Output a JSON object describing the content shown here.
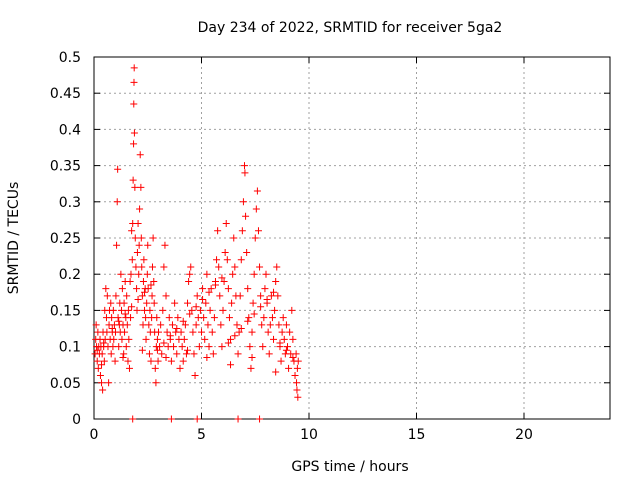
{
  "chart_data": {
    "type": "scatter",
    "title": "Day 234 of 2022, SRMTID for receiver 5ga2",
    "xlabel": "GPS time / hours",
    "ylabel": "SRMTID / TECUs",
    "xlim": [
      0,
      24
    ],
    "ylim": [
      0,
      0.5
    ],
    "xticks": [
      0,
      5,
      10,
      15,
      20
    ],
    "yticks": [
      0,
      0.05,
      0.1,
      0.15,
      0.2,
      0.25,
      0.3,
      0.35,
      0.4,
      0.45,
      0.5
    ],
    "xtick_labels": [
      "0",
      "5",
      "10",
      "15",
      "20"
    ],
    "ytick_labels": [
      "0",
      "0.05",
      "0.1",
      "0.15",
      "0.2",
      "0.25",
      "0.3",
      "0.35",
      "0.4",
      "0.45",
      "0.5"
    ],
    "grid": true,
    "marker": "+",
    "color": "#ff0000",
    "series": [
      {
        "name": "SRMTID",
        "points": [
          [
            0.05,
            0.09
          ],
          [
            0.08,
            0.11
          ],
          [
            0.1,
            0.13
          ],
          [
            0.12,
            0.1
          ],
          [
            0.15,
            0.08
          ],
          [
            0.18,
            0.12
          ],
          [
            0.2,
            0.07
          ],
          [
            0.22,
            0.1
          ],
          [
            0.25,
            0.09
          ],
          [
            0.28,
            0.11
          ],
          [
            0.3,
            0.06
          ],
          [
            0.32,
            0.1
          ],
          [
            0.35,
            0.05
          ],
          [
            0.38,
            0.09
          ],
          [
            0.4,
            0.04
          ],
          [
            0.42,
            0.12
          ],
          [
            0.45,
            0.1
          ],
          [
            0.48,
            0.08
          ],
          [
            0.5,
            0.15
          ],
          [
            0.52,
            0.11
          ],
          [
            0.55,
            0.18
          ],
          [
            0.58,
            0.14
          ],
          [
            0.6,
            0.12
          ],
          [
            0.62,
            0.17
          ],
          [
            0.65,
            0.1
          ],
          [
            0.68,
            0.05
          ],
          [
            0.7,
            0.13
          ],
          [
            0.72,
            0.15
          ],
          [
            0.75,
            0.11
          ],
          [
            0.78,
            0.16
          ],
          [
            0.8,
            0.09
          ],
          [
            0.82,
            0.14
          ],
          [
            0.85,
            0.12
          ],
          [
            0.88,
            0.1
          ],
          [
            0.9,
            0.15
          ],
          [
            0.92,
            0.11
          ],
          [
            0.95,
            0.13
          ],
          [
            0.98,
            0.08
          ],
          [
            1.0,
            0.12
          ],
          [
            1.02,
            0.17
          ],
          [
            1.05,
            0.24
          ],
          [
            1.08,
            0.3
          ],
          [
            1.1,
            0.345
          ],
          [
            1.12,
            0.14
          ],
          [
            1.15,
            0.1
          ],
          [
            1.18,
            0.13
          ],
          [
            1.2,
            0.16
          ],
          [
            1.22,
            0.12
          ],
          [
            1.25,
            0.2
          ],
          [
            1.28,
            0.15
          ],
          [
            1.3,
            0.11
          ],
          [
            1.32,
            0.18
          ],
          [
            1.35,
            0.13
          ],
          [
            1.38,
            0.09
          ],
          [
            1.4,
            0.16
          ],
          [
            1.42,
            0.12
          ],
          [
            1.45,
            0.19
          ],
          [
            1.48,
            0.14
          ],
          [
            1.5,
            0.1
          ],
          [
            1.52,
            0.17
          ],
          [
            1.55,
            0.13
          ],
          [
            1.58,
            0.08
          ],
          [
            1.6,
            0.15
          ],
          [
            1.62,
            0.11
          ],
          [
            1.65,
            0.07
          ],
          [
            1.68,
            0.19
          ],
          [
            1.7,
            0.14
          ],
          [
            1.72,
            0.2
          ],
          [
            1.75,
            0.26
          ],
          [
            1.78,
            0.22
          ],
          [
            1.8,
            0.27
          ],
          [
            1.82,
            0.33
          ],
          [
            1.84,
            0.38
          ],
          [
            1.85,
            0.435
          ],
          [
            1.86,
            0.465
          ],
          [
            1.87,
            0.485
          ],
          [
            1.88,
            0.395
          ],
          [
            1.9,
            0.32
          ],
          [
            1.92,
            0.25
          ],
          [
            1.95,
            0.21
          ],
          [
            1.98,
            0.18
          ],
          [
            2.0,
            0.15
          ],
          [
            2.02,
            0.23
          ],
          [
            2.05,
            0.27
          ],
          [
            2.08,
            0.2
          ],
          [
            2.1,
            0.24
          ],
          [
            2.12,
            0.29
          ],
          [
            2.15,
            0.365
          ],
          [
            2.18,
            0.32
          ],
          [
            2.2,
            0.25
          ],
          [
            2.22,
            0.21
          ],
          [
            2.25,
            0.17
          ],
          [
            2.28,
            0.13
          ],
          [
            2.3,
            0.19
          ],
          [
            2.32,
            0.22
          ],
          [
            2.35,
            0.15
          ],
          [
            2.38,
            0.18
          ],
          [
            2.4,
            0.14
          ],
          [
            2.42,
            0.11
          ],
          [
            2.45,
            0.16
          ],
          [
            2.48,
            0.2
          ],
          [
            2.5,
            0.24
          ],
          [
            2.52,
            0.18
          ],
          [
            2.55,
            0.13
          ],
          [
            2.58,
            0.09
          ],
          [
            2.6,
            0.15
          ],
          [
            2.62,
            0.12
          ],
          [
            2.65,
            0.08
          ],
          [
            2.68,
            0.14
          ],
          [
            2.7,
            0.17
          ],
          [
            2.72,
            0.21
          ],
          [
            2.75,
            0.25
          ],
          [
            2.78,
            0.19
          ],
          [
            2.8,
            0.16
          ],
          [
            2.82,
            0.12
          ],
          [
            2.85,
            0.07
          ],
          [
            2.88,
            0.05
          ],
          [
            2.9,
            0.1
          ],
          [
            2.92,
            0.14
          ],
          [
            2.95,
            0.11
          ],
          [
            2.98,
            0.08
          ],
          [
            3.0,
            0.12
          ],
          [
            3.05,
            0.1
          ],
          [
            3.1,
            0.13
          ],
          [
            3.15,
            0.09
          ],
          [
            3.2,
            0.15
          ],
          [
            3.25,
            0.21
          ],
          [
            3.3,
            0.24
          ],
          [
            3.35,
            0.17
          ],
          [
            3.4,
            0.12
          ],
          [
            3.45,
            0.1
          ],
          [
            3.5,
            0.14
          ],
          [
            3.55,
            0.11
          ],
          [
            3.6,
            0.08
          ],
          [
            3.65,
            0.13
          ],
          [
            3.7,
            0.1
          ],
          [
            3.75,
            0.16
          ],
          [
            3.8,
            0.12
          ],
          [
            3.85,
            0.09
          ],
          [
            3.9,
            0.14
          ],
          [
            3.95,
            0.11
          ],
          [
            4.0,
            0.07
          ],
          [
            4.05,
            0.12
          ],
          [
            4.1,
            0.1
          ],
          [
            4.15,
            0.08
          ],
          [
            4.2,
            0.11
          ],
          [
            4.25,
            0.13
          ],
          [
            4.3,
            0.09
          ],
          [
            4.35,
            0.16
          ],
          [
            4.4,
            0.19
          ],
          [
            4.45,
            0.2
          ],
          [
            4.5,
            0.21
          ],
          [
            4.55,
            0.15
          ],
          [
            4.6,
            0.12
          ],
          [
            4.65,
            0.09
          ],
          [
            4.7,
            0.06
          ],
          [
            4.75,
            0.13
          ],
          [
            4.8,
            0.17
          ],
          [
            4.85,
            0.14
          ],
          [
            4.9,
            0.1
          ],
          [
            4.95,
            0.15
          ],
          [
            5.0,
            0.12
          ],
          [
            5.05,
            0.18
          ],
          [
            5.1,
            0.14
          ],
          [
            5.15,
            0.11
          ],
          [
            5.2,
            0.16
          ],
          [
            5.25,
            0.2
          ],
          [
            5.3,
            0.13
          ],
          [
            5.35,
            0.1
          ],
          [
            5.4,
            0.15
          ],
          [
            5.45,
            0.18
          ],
          [
            5.5,
            0.12
          ],
          [
            5.55,
            0.09
          ],
          [
            5.6,
            0.14
          ],
          [
            5.65,
            0.19
          ],
          [
            5.7,
            0.22
          ],
          [
            5.75,
            0.26
          ],
          [
            5.8,
            0.21
          ],
          [
            5.85,
            0.17
          ],
          [
            5.9,
            0.13
          ],
          [
            5.95,
            0.1
          ],
          [
            6.0,
            0.15
          ],
          [
            6.05,
            0.19
          ],
          [
            6.1,
            0.23
          ],
          [
            6.15,
            0.27
          ],
          [
            6.2,
            0.22
          ],
          [
            6.25,
            0.18
          ],
          [
            6.3,
            0.14
          ],
          [
            6.35,
            0.11
          ],
          [
            6.4,
            0.16
          ],
          [
            6.45,
            0.2
          ],
          [
            6.5,
            0.25
          ],
          [
            6.55,
            0.21
          ],
          [
            6.6,
            0.17
          ],
          [
            6.65,
            0.13
          ],
          [
            6.7,
            0.09
          ],
          [
            6.75,
            0.12
          ],
          [
            6.8,
            0.17
          ],
          [
            6.85,
            0.22
          ],
          [
            6.9,
            0.26
          ],
          [
            6.95,
            0.3
          ],
          [
            7.0,
            0.35
          ],
          [
            7.02,
            0.34
          ],
          [
            7.05,
            0.28
          ],
          [
            7.1,
            0.23
          ],
          [
            7.15,
            0.18
          ],
          [
            7.2,
            0.14
          ],
          [
            7.25,
            0.1
          ],
          [
            7.3,
            0.07
          ],
          [
            7.35,
            0.12
          ],
          [
            7.4,
            0.16
          ],
          [
            7.45,
            0.2
          ],
          [
            7.5,
            0.25
          ],
          [
            7.55,
            0.29
          ],
          [
            7.6,
            0.315
          ],
          [
            7.65,
            0.26
          ],
          [
            7.7,
            0.21
          ],
          [
            7.75,
            0.17
          ],
          [
            7.8,
            0.13
          ],
          [
            7.85,
            0.1
          ],
          [
            7.9,
            0.14
          ],
          [
            7.95,
            0.18
          ],
          [
            8.0,
            0.2
          ],
          [
            8.05,
            0.16
          ],
          [
            8.1,
            0.12
          ],
          [
            8.15,
            0.09
          ],
          [
            8.2,
            0.13
          ],
          [
            8.25,
            0.17
          ],
          [
            8.3,
            0.14
          ],
          [
            8.35,
            0.11
          ],
          [
            8.4,
            0.15
          ],
          [
            8.45,
            0.19
          ],
          [
            8.5,
            0.21
          ],
          [
            8.55,
            0.17
          ],
          [
            8.6,
            0.13
          ],
          [
            8.65,
            0.1
          ],
          [
            8.7,
            0.08
          ],
          [
            8.75,
            0.12
          ],
          [
            8.8,
            0.14
          ],
          [
            8.85,
            0.11
          ],
          [
            8.9,
            0.09
          ],
          [
            8.95,
            0.13
          ],
          [
            9.0,
            0.1
          ],
          [
            9.05,
            0.07
          ],
          [
            9.1,
            0.12
          ],
          [
            9.15,
            0.09
          ],
          [
            9.2,
            0.15
          ],
          [
            9.25,
            0.11
          ],
          [
            9.3,
            0.08
          ],
          [
            9.35,
            0.06
          ],
          [
            9.4,
            0.09
          ],
          [
            9.42,
            0.05
          ],
          [
            9.44,
            0.04
          ],
          [
            9.46,
            0.07
          ],
          [
            9.48,
            0.03
          ],
          [
            9.5,
            0.08
          ],
          [
            0.15,
            0.095
          ],
          [
            0.45,
            0.105
          ],
          [
            0.85,
            0.125
          ],
          [
            1.15,
            0.135
          ],
          [
            1.45,
            0.145
          ],
          [
            1.75,
            0.155
          ],
          [
            2.05,
            0.165
          ],
          [
            2.35,
            0.175
          ],
          [
            2.65,
            0.185
          ],
          [
            2.95,
            0.095
          ],
          [
            3.25,
            0.105
          ],
          [
            3.55,
            0.115
          ],
          [
            3.85,
            0.125
          ],
          [
            4.15,
            0.135
          ],
          [
            4.45,
            0.145
          ],
          [
            4.75,
            0.155
          ],
          [
            5.05,
            0.165
          ],
          [
            5.35,
            0.175
          ],
          [
            5.65,
            0.185
          ],
          [
            5.95,
            0.195
          ],
          [
            6.25,
            0.105
          ],
          [
            6.55,
            0.115
          ],
          [
            6.85,
            0.125
          ],
          [
            7.15,
            0.135
          ],
          [
            7.45,
            0.145
          ],
          [
            7.75,
            0.155
          ],
          [
            8.05,
            0.165
          ],
          [
            8.35,
            0.175
          ],
          [
            8.65,
            0.105
          ],
          [
            8.95,
            0.095
          ],
          [
            9.25,
            0.085
          ],
          [
            0.35,
            0.075
          ],
          [
            1.35,
            0.085
          ],
          [
            2.25,
            0.095
          ],
          [
            3.35,
            0.085
          ],
          [
            4.35,
            0.095
          ],
          [
            5.25,
            0.085
          ],
          [
            6.35,
            0.075
          ],
          [
            7.35,
            0.085
          ],
          [
            8.45,
            0.065
          ],
          [
            1.8,
            0.0
          ],
          [
            3.6,
            0.0
          ],
          [
            4.8,
            0.0
          ],
          [
            6.7,
            0.0
          ],
          [
            7.7,
            0.0
          ]
        ]
      }
    ]
  }
}
